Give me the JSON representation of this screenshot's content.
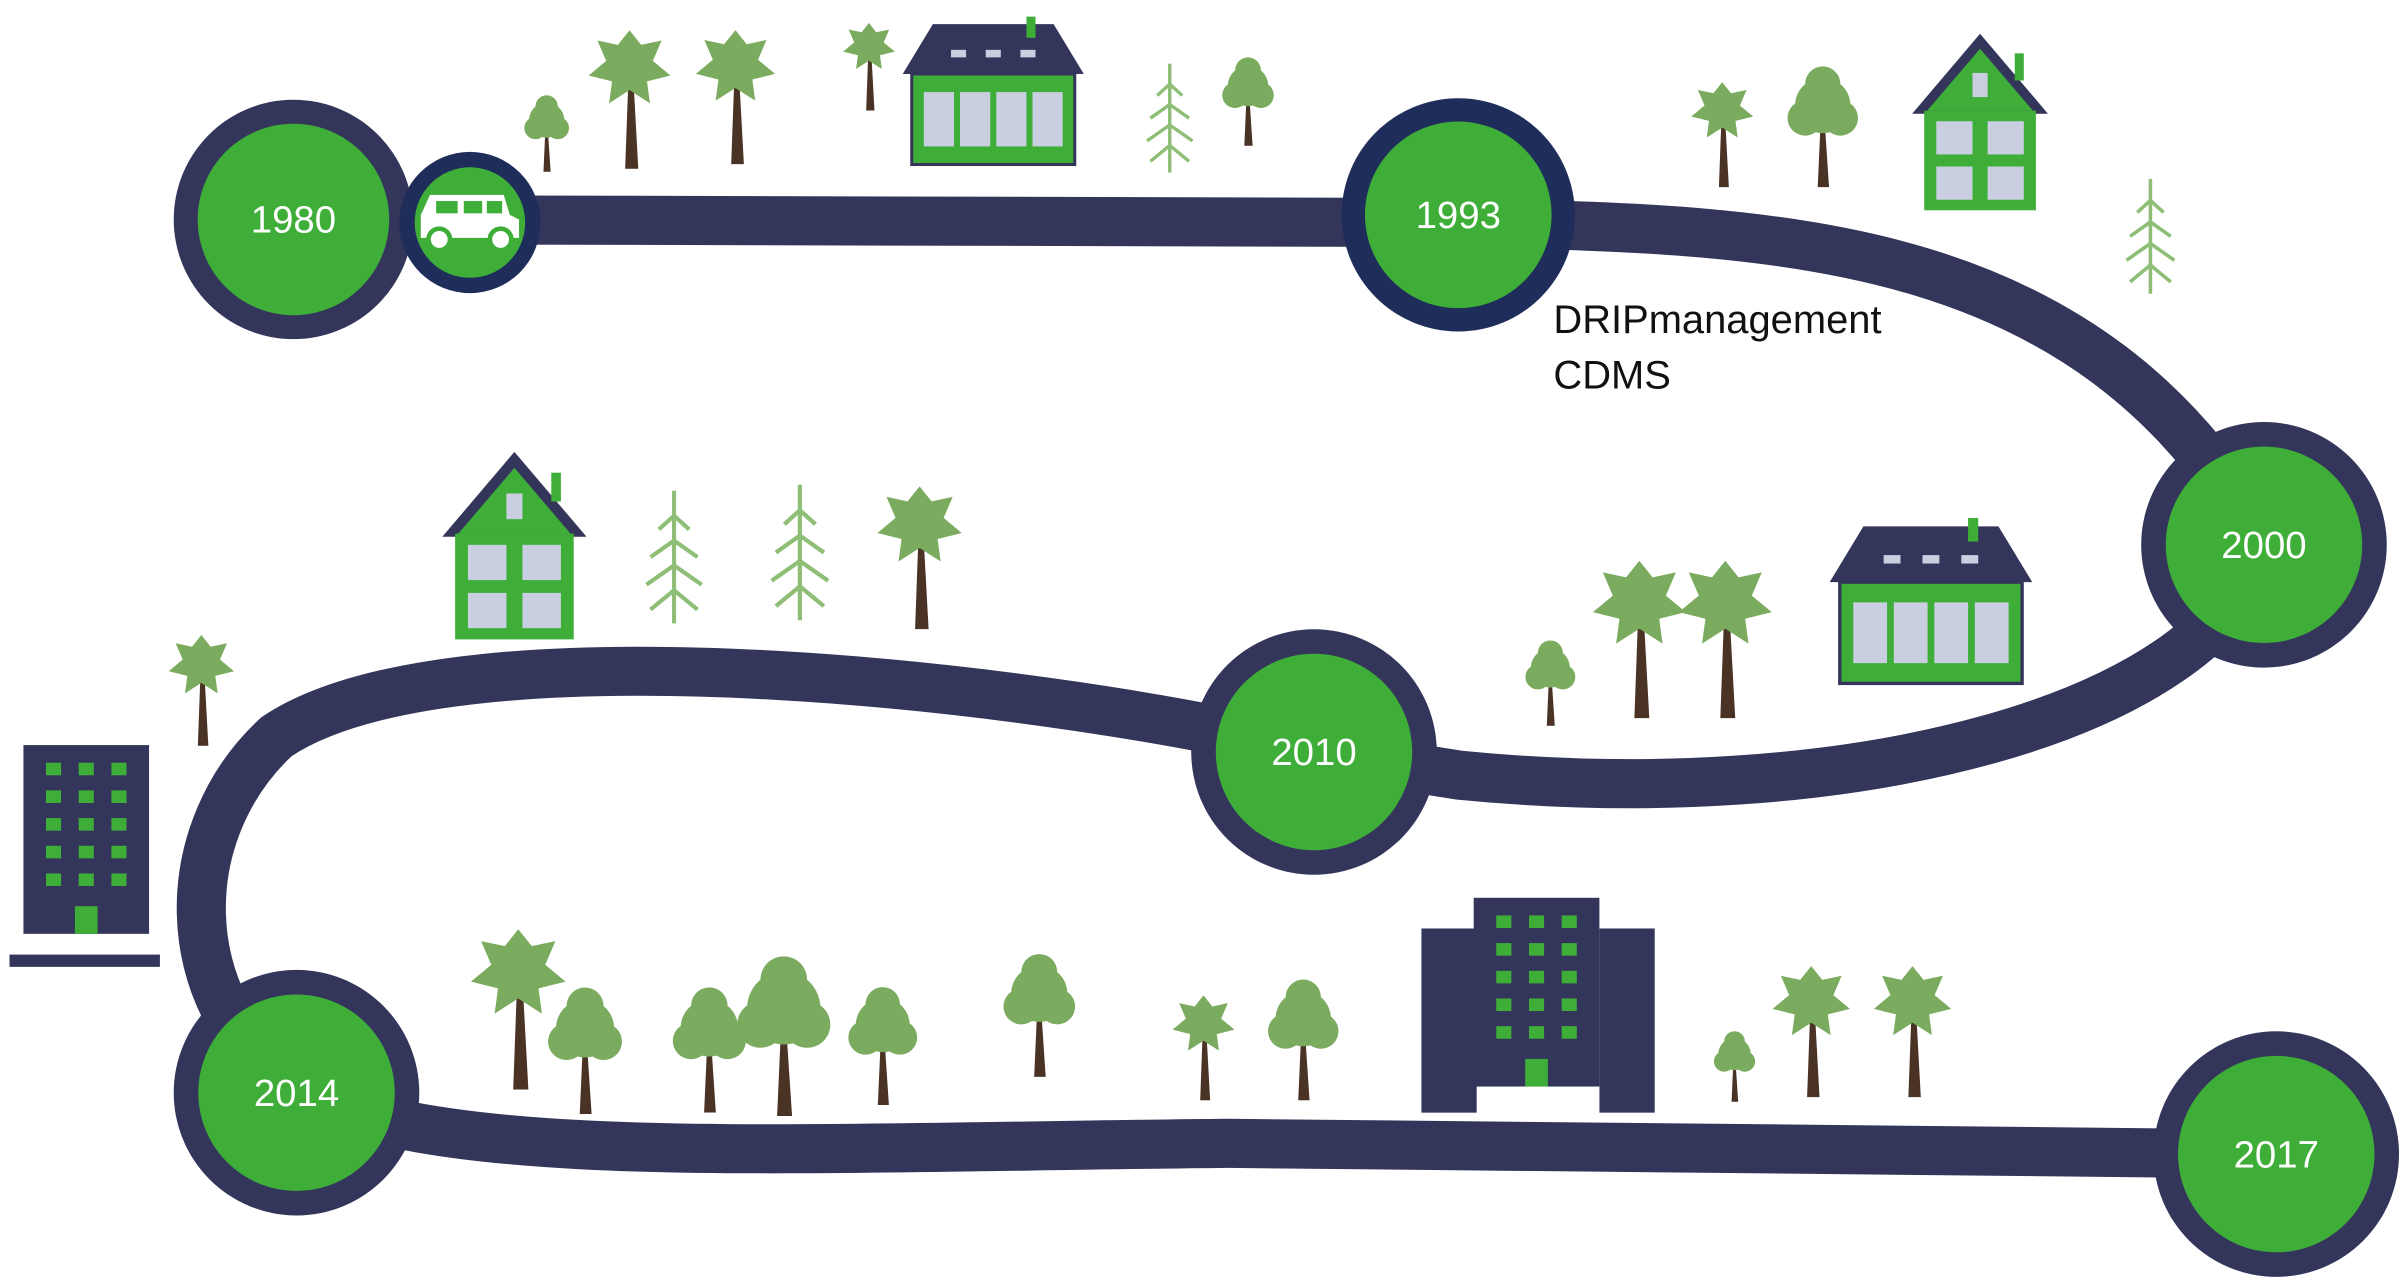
{
  "milestones": [
    {
      "year": "1980"
    },
    {
      "year": "1993",
      "notes": [
        "DRIPmanagement",
        "CDMS"
      ]
    },
    {
      "year": "2000"
    },
    {
      "year": "2010"
    },
    {
      "year": "2014"
    },
    {
      "year": "2017"
    }
  ]
}
